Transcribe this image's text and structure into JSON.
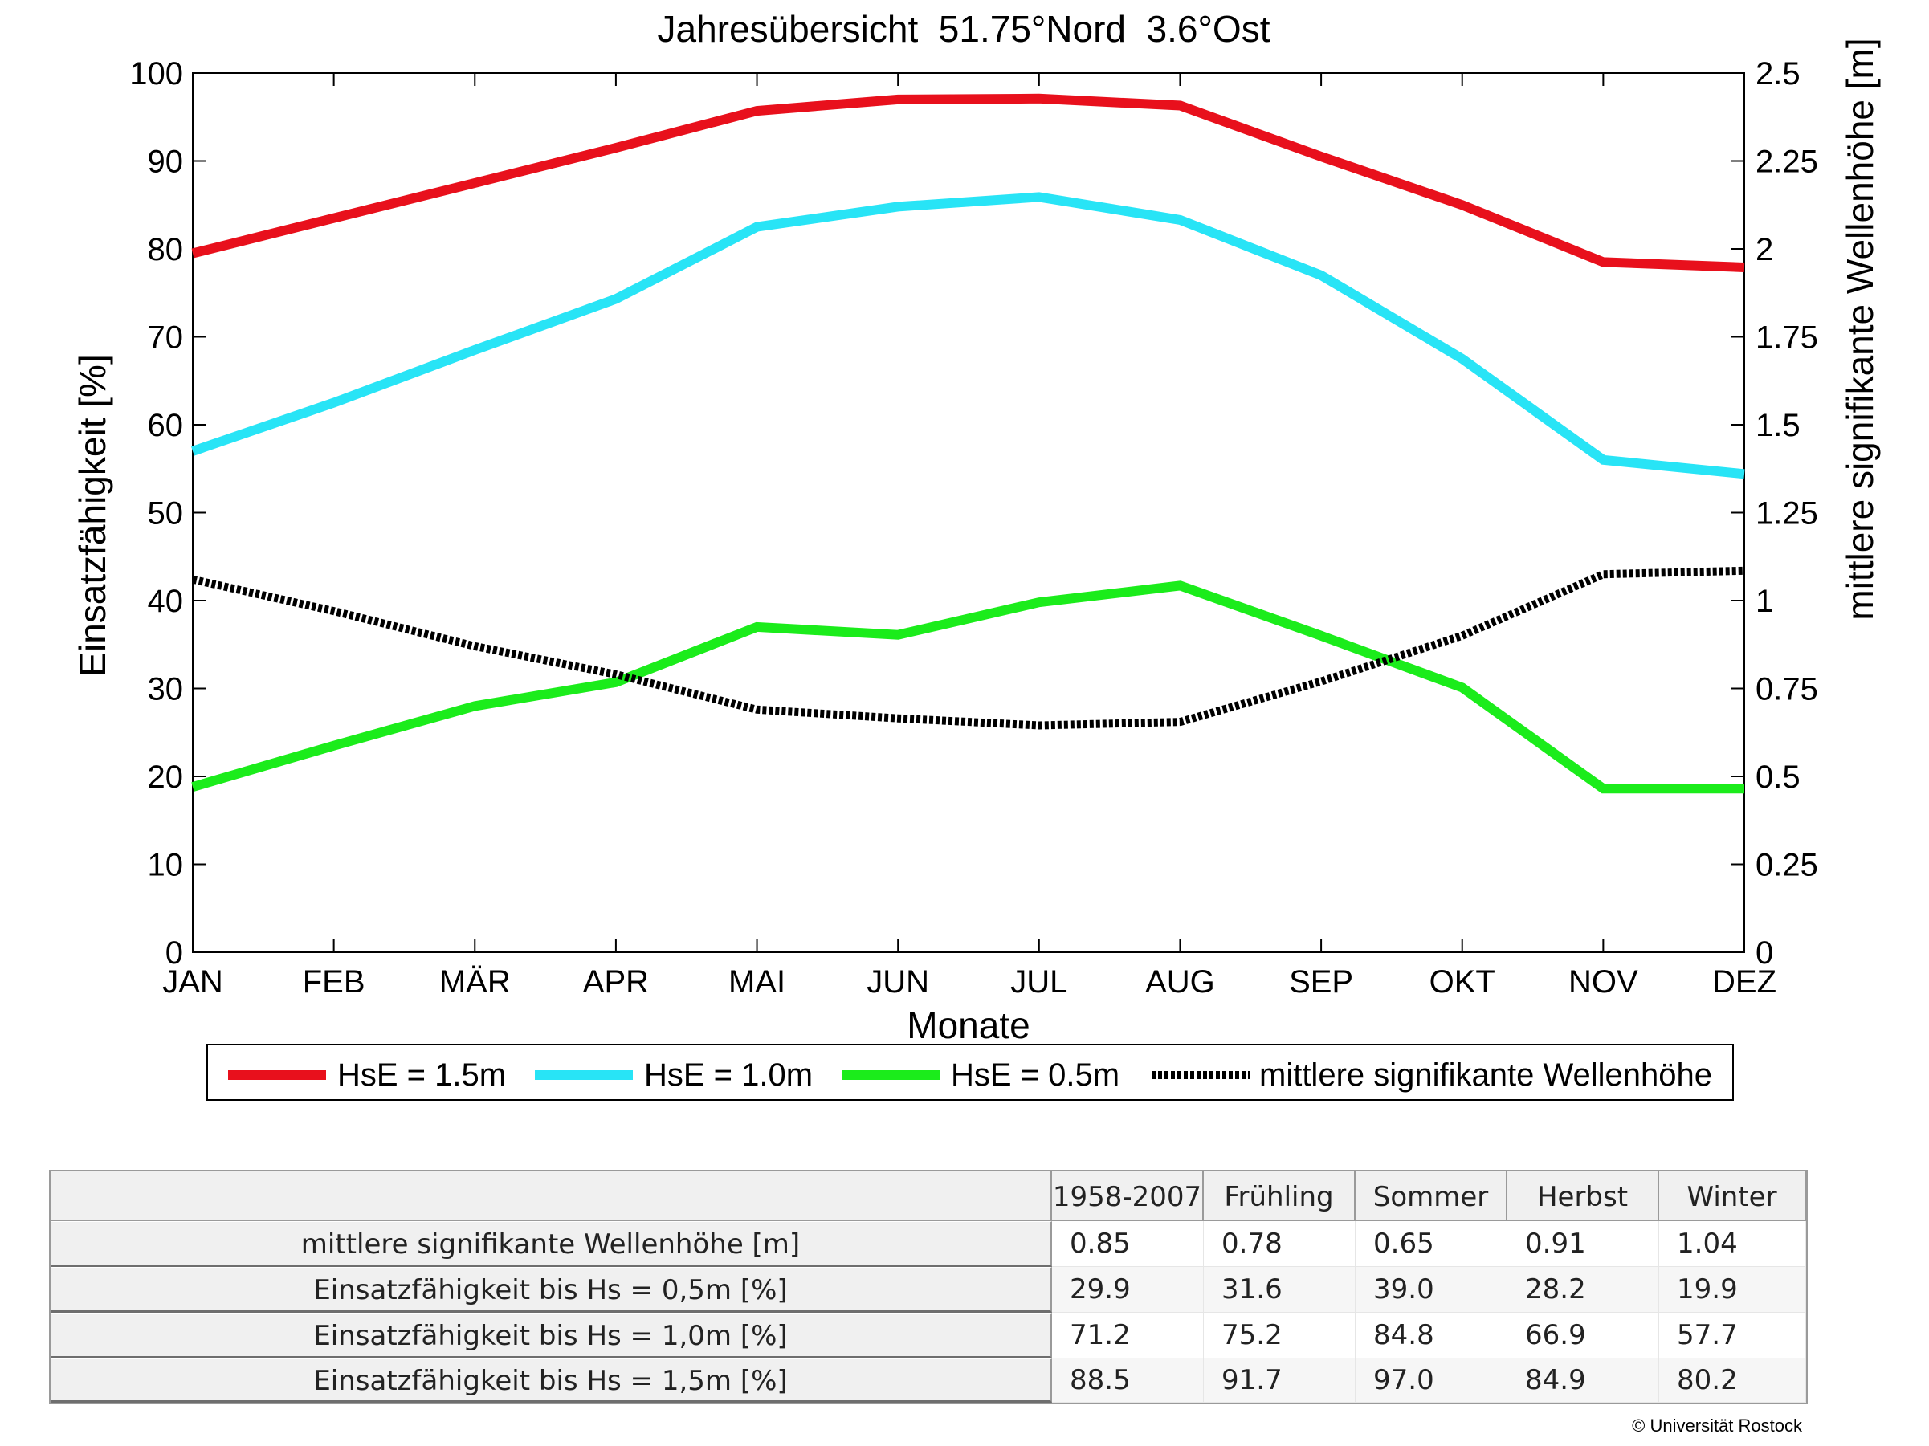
{
  "chart_data": {
    "type": "line",
    "title": "Jahresübersicht  51.75°Nord  3.6°Ost",
    "xlabel": "Monate",
    "ylabel_left": "Einsatzfähigkeit [%]",
    "ylabel_right": "mittlere signifikante Wellenhöhe [m]",
    "categories": [
      "JAN",
      "FEB",
      "MÄR",
      "APR",
      "MAI",
      "JUN",
      "JUL",
      "AUG",
      "SEP",
      "OKT",
      "NOV",
      "DEZ"
    ],
    "ylim_left": [
      0,
      100
    ],
    "yticks_left": [
      "0",
      "10",
      "20",
      "30",
      "40",
      "50",
      "60",
      "70",
      "80",
      "90",
      "100"
    ],
    "ylim_right": [
      0,
      2.5
    ],
    "yticks_right": [
      "0",
      "0.25",
      "0.5",
      "0.75",
      "1",
      "1.25",
      "1.5",
      "1.75",
      "2",
      "2.25",
      "2.5"
    ],
    "grid": false,
    "legend_position": "bottom",
    "series": [
      {
        "name": "HsE = 1.5m",
        "axis": "left",
        "color": "#e8101c",
        "style": "solid",
        "values": [
          79.5,
          83.5,
          87.5,
          91.5,
          95.7,
          97.0,
          97.1,
          96.3,
          90.5,
          85.0,
          78.5,
          77.9
        ]
      },
      {
        "name": "HsE = 1.0m",
        "axis": "left",
        "color": "#28e4f6",
        "style": "solid",
        "values": [
          57.0,
          62.5,
          68.5,
          74.3,
          82.5,
          84.8,
          85.9,
          83.3,
          77.0,
          67.5,
          56.0,
          54.4
        ]
      },
      {
        "name": "HsE = 0.5m",
        "axis": "left",
        "color": "#1bec1b",
        "style": "solid",
        "values": [
          18.8,
          23.5,
          28.0,
          30.7,
          37.0,
          36.1,
          39.8,
          41.7,
          36.0,
          30.1,
          18.6,
          18.6
        ]
      },
      {
        "name": "mittlere signifikante Wellenhöhe",
        "axis": "right",
        "color": "#000000",
        "style": "dotted",
        "values": [
          1.06,
          0.97,
          0.87,
          0.79,
          0.69,
          0.665,
          0.645,
          0.655,
          0.77,
          0.9,
          1.075,
          1.085
        ]
      }
    ]
  },
  "table": {
    "headers": [
      "",
      "1958-2007",
      "Frühling",
      "Sommer",
      "Herbst",
      "Winter"
    ],
    "rows": [
      {
        "label": "mittlere signifikante Wellenhöhe [m]",
        "values": [
          "0.85",
          "0.78",
          "0.65",
          "0.91",
          "1.04"
        ]
      },
      {
        "label": "Einsatzfähigkeit bis Hs = 0,5m [%]",
        "values": [
          "29.9",
          "31.6",
          "39.0",
          "28.2",
          "19.9"
        ]
      },
      {
        "label": "Einsatzfähigkeit bis Hs = 1,0m [%]",
        "values": [
          "71.2",
          "75.2",
          "84.8",
          "66.9",
          "57.7"
        ]
      },
      {
        "label": "Einsatzfähigkeit bis Hs = 1,5m [%]",
        "values": [
          "88.5",
          "91.7",
          "97.0",
          "84.9",
          "80.2"
        ]
      }
    ]
  },
  "footer": {
    "copyright": "© Universität Rostock"
  }
}
